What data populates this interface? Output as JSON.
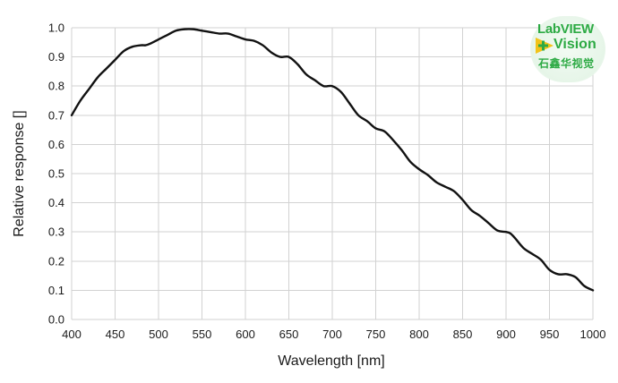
{
  "chart_data": {
    "type": "line",
    "title": "",
    "xlabel": "Wavelength [nm]",
    "ylabel": "Relative response []",
    "xlim": [
      400,
      1000
    ],
    "ylim": [
      0.0,
      1.0
    ],
    "xticks": [
      400,
      450,
      500,
      550,
      600,
      650,
      700,
      750,
      800,
      850,
      900,
      950,
      1000
    ],
    "yticks": [
      0.0,
      0.1,
      0.2,
      0.3,
      0.4,
      0.5,
      0.6,
      0.7,
      0.8,
      0.9,
      1.0
    ],
    "ytick_labels": [
      "0.0",
      "0.1",
      "0.2",
      "0.3",
      "0.4",
      "0.5",
      "0.6",
      "0.7",
      "0.8",
      "0.9",
      "1.0"
    ],
    "grid": true,
    "series": [
      {
        "color": "#111111",
        "x": [
          400,
          410,
          420,
          430,
          440,
          450,
          460,
          470,
          480,
          485,
          490,
          500,
          510,
          520,
          530,
          540,
          550,
          560,
          570,
          580,
          590,
          600,
          610,
          620,
          630,
          640,
          650,
          660,
          670,
          680,
          690,
          700,
          710,
          720,
          730,
          740,
          750,
          760,
          770,
          780,
          790,
          800,
          810,
          820,
          830,
          840,
          850,
          860,
          870,
          880,
          890,
          900,
          905,
          910,
          920,
          930,
          940,
          950,
          960,
          970,
          980,
          990,
          1000
        ],
        "values": [
          0.7,
          0.75,
          0.79,
          0.83,
          0.86,
          0.89,
          0.92,
          0.935,
          0.94,
          0.94,
          0.945,
          0.96,
          0.975,
          0.99,
          0.995,
          0.995,
          0.99,
          0.985,
          0.98,
          0.98,
          0.97,
          0.96,
          0.955,
          0.94,
          0.915,
          0.9,
          0.9,
          0.875,
          0.84,
          0.82,
          0.8,
          0.8,
          0.78,
          0.74,
          0.7,
          0.68,
          0.655,
          0.645,
          0.615,
          0.58,
          0.54,
          0.515,
          0.495,
          0.47,
          0.455,
          0.44,
          0.41,
          0.375,
          0.355,
          0.33,
          0.305,
          0.3,
          0.295,
          0.28,
          0.245,
          0.225,
          0.205,
          0.17,
          0.155,
          0.155,
          0.145,
          0.115,
          0.1
        ]
      }
    ]
  },
  "logo": {
    "line1": "LabVIEW",
    "line2": "Vision",
    "line3": "石鑫华视觉"
  },
  "colors": {
    "curve": "#111111",
    "grid": "#d2d2d2",
    "logo_green": "#2daa44",
    "logo_yellow": "#f2c318"
  }
}
